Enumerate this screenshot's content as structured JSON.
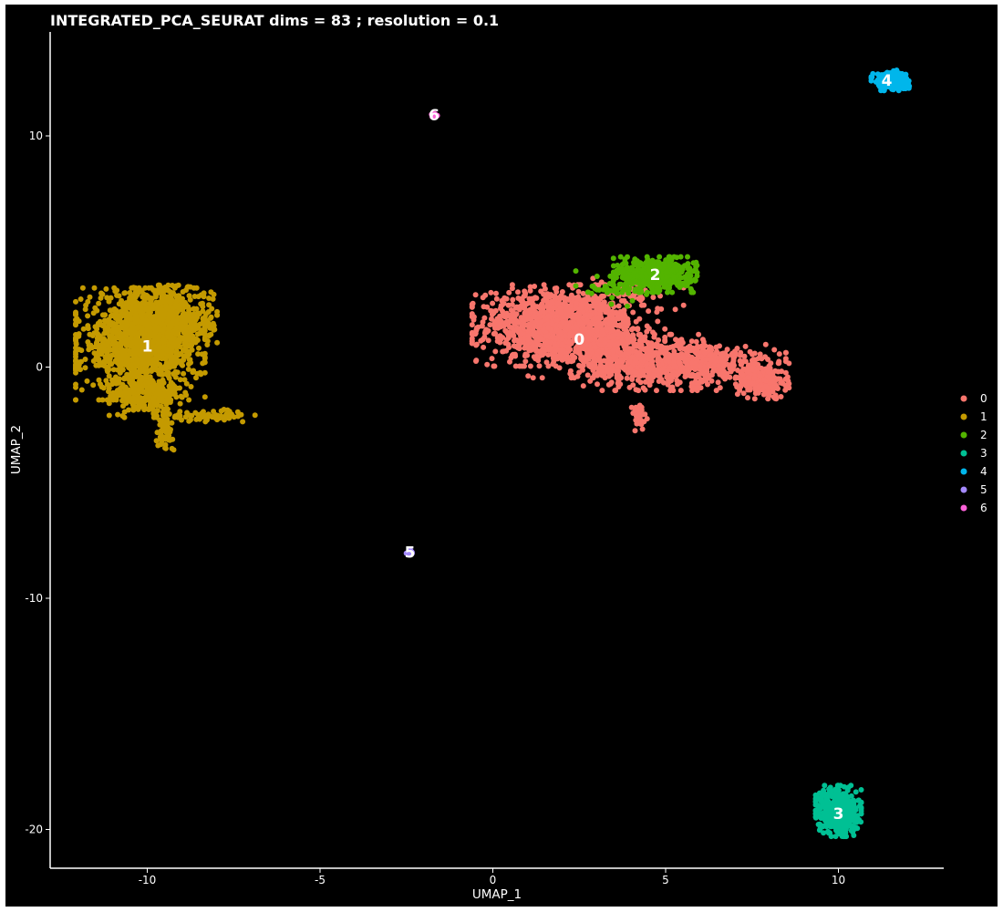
{
  "chart_data": {
    "type": "scatter",
    "title": "INTEGRATED_PCA_SEURAT dims =  83 ; resolution = 0.1",
    "xlabel": "UMAP_1",
    "ylabel": "UMAP_2",
    "xlim": [
      -12.8,
      13
    ],
    "ylim": [
      -21.3,
      14.4
    ],
    "x_ticks": [
      -10,
      -5,
      0,
      5,
      10
    ],
    "y_ticks": [
      10,
      0,
      -10,
      -20
    ],
    "grid": false,
    "legend_placement": "right",
    "background": "#000000",
    "foreground": "#ffffff",
    "clusters": [
      {
        "id": "0",
        "color": "#F8766D",
        "label_pos": [
          2.5,
          1.2
        ]
      },
      {
        "id": "1",
        "color": "#C49A00",
        "label_pos": [
          -10.0,
          0.9
        ]
      },
      {
        "id": "2",
        "color": "#53B400",
        "label_pos": [
          4.7,
          4.0
        ]
      },
      {
        "id": "3",
        "color": "#00C094",
        "label_pos": [
          10.0,
          -19.3
        ]
      },
      {
        "id": "4",
        "color": "#00B6EB",
        "label_pos": [
          11.4,
          12.4
        ]
      },
      {
        "id": "5",
        "color": "#A58AFF",
        "label_pos": [
          -2.4,
          -8.0
        ]
      },
      {
        "id": "6",
        "color": "#FB61D7",
        "label_pos": [
          -1.7,
          10.9
        ]
      }
    ],
    "blobs": [
      {
        "cluster": "0",
        "cx": 1.6,
        "cy": 1.8,
        "sx": 1.0,
        "sy": 0.8,
        "n": 900
      },
      {
        "cluster": "0",
        "cx": 3.0,
        "cy": 1.3,
        "sx": 0.9,
        "sy": 0.8,
        "n": 500
      },
      {
        "cluster": "0",
        "cx": 4.6,
        "cy": 0.2,
        "sx": 0.9,
        "sy": 0.55,
        "n": 500
      },
      {
        "cluster": "0",
        "cx": 6.5,
        "cy": 0.1,
        "sx": 0.9,
        "sy": 0.45,
        "n": 250
      },
      {
        "cluster": "0",
        "cx": 7.8,
        "cy": -0.6,
        "sx": 0.35,
        "sy": 0.35,
        "n": 200
      },
      {
        "cluster": "0",
        "cx": 4.2,
        "cy": -2.2,
        "sx": 0.12,
        "sy": 0.3,
        "n": 40
      },
      {
        "cluster": "0",
        "cx": 4.2,
        "cy": 3.2,
        "sx": 0.6,
        "sy": 0.4,
        "n": 40
      },
      {
        "cluster": "1",
        "cx": -10.2,
        "cy": 1.0,
        "sx": 0.85,
        "sy": 1.1,
        "n": 1200
      },
      {
        "cluster": "1",
        "cx": -9.3,
        "cy": 2.0,
        "sx": 0.6,
        "sy": 0.7,
        "n": 400
      },
      {
        "cluster": "1",
        "cx": -10.0,
        "cy": -1.3,
        "sx": 0.5,
        "sy": 0.4,
        "n": 200
      },
      {
        "cluster": "1",
        "cx": -9.5,
        "cy": -2.7,
        "sx": 0.12,
        "sy": 0.4,
        "n": 60
      },
      {
        "cluster": "1",
        "cx": -8.2,
        "cy": -2.1,
        "sx": 0.6,
        "sy": 0.12,
        "n": 60
      },
      {
        "cluster": "2",
        "cx": 4.7,
        "cy": 4.0,
        "sx": 0.55,
        "sy": 0.35,
        "n": 500
      },
      {
        "cluster": "2",
        "cx": 3.5,
        "cy": 3.4,
        "sx": 0.5,
        "sy": 0.35,
        "n": 40
      },
      {
        "cluster": "3",
        "cx": 10.0,
        "cy": -19.2,
        "sx": 0.3,
        "sy": 0.5,
        "n": 450
      },
      {
        "cluster": "4",
        "cx": 11.5,
        "cy": 12.4,
        "sx": 0.25,
        "sy": 0.2,
        "n": 200
      },
      {
        "cluster": "5",
        "cx": -2.4,
        "cy": -8.0,
        "sx": 0.05,
        "sy": 0.05,
        "n": 12
      },
      {
        "cluster": "6",
        "cx": -1.7,
        "cy": 10.9,
        "sx": 0.05,
        "sy": 0.05,
        "n": 12
      }
    ]
  }
}
